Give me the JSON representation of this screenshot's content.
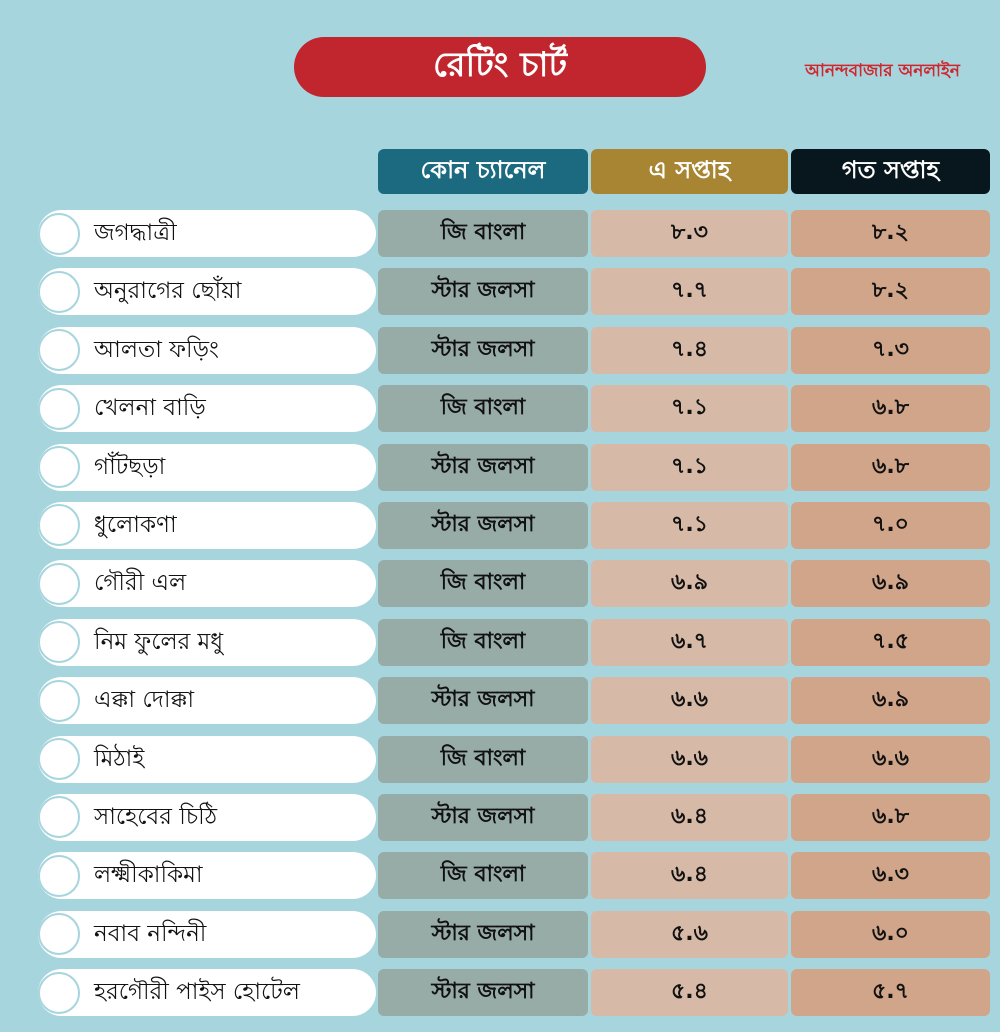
{
  "header": {
    "title": "রেটিং চার্ট",
    "brand": "আনন্দবাজার অনলাইন"
  },
  "colors": {
    "background": "#a6d5dd",
    "title_pill": "#c1252d",
    "channel_header": "#1c6a80",
    "this_week_header": "#a88532",
    "last_week_header": "#08171e",
    "channel_cell": "#97aca7",
    "this_week_cell": "#d6b9a6",
    "last_week_cell": "#d0a589"
  },
  "chart_data": {
    "type": "table",
    "columns": [
      "কোন চ্যানেল",
      "এ সপ্তাহ",
      "গত সপ্তাহ"
    ],
    "rows": [
      {
        "show": "জগদ্ধাত্রী",
        "channel": "জি বাংলা",
        "this_week": "৮.৩",
        "last_week": "৮.২"
      },
      {
        "show": "অনুরাগের ছোঁয়া",
        "channel": "স্টার জলসা",
        "this_week": "৭.৭",
        "last_week": "৮.২"
      },
      {
        "show": "আলতা ফড়িং",
        "channel": "স্টার জলসা",
        "this_week": "৭.৪",
        "last_week": "৭.৩"
      },
      {
        "show": "খেলনা বাড়ি",
        "channel": "জি বাংলা",
        "this_week": "৭.১",
        "last_week": "৬.৮"
      },
      {
        "show": "গাঁটছড়া",
        "channel": "স্টার জলসা",
        "this_week": "৭.১",
        "last_week": "৬.৮"
      },
      {
        "show": "ধুলোকণা",
        "channel": "স্টার জলসা",
        "this_week": "৭.১",
        "last_week": "৭.০"
      },
      {
        "show": "গৌরী এল",
        "channel": "জি বাংলা",
        "this_week": "৬.৯",
        "last_week": "৬.৯"
      },
      {
        "show": "নিম ফুলের মধু",
        "channel": "জি বাংলা",
        "this_week": "৬.৭",
        "last_week": "৭.৫"
      },
      {
        "show": "এক্কা দোক্কা",
        "channel": "স্টার জলসা",
        "this_week": "৬.৬",
        "last_week": "৬.৯"
      },
      {
        "show": "মিঠাই",
        "channel": "জি বাংলা",
        "this_week": "৬.৬",
        "last_week": "৬.৬"
      },
      {
        "show": "সাহেবের চিঠি",
        "channel": "স্টার জলসা",
        "this_week": "৬.৪",
        "last_week": "৬.৮"
      },
      {
        "show": "লক্ষ্মীকাকিমা",
        "channel": "জি বাংলা",
        "this_week": "৬.৪",
        "last_week": "৬.৩"
      },
      {
        "show": "নবাব নন্দিনী",
        "channel": "স্টার জলসা",
        "this_week": "৫.৬",
        "last_week": "৬.০"
      },
      {
        "show": "হরগৌরী পাইস হোটেল",
        "channel": "স্টার জলসা",
        "this_week": "৫.৪",
        "last_week": "৫.৭"
      }
    ]
  }
}
